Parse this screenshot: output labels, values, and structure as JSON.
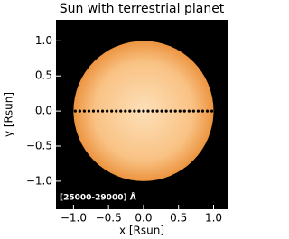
{
  "chart_data": {
    "type": "scatter",
    "title": "Sun with terrestrial planet",
    "xlabel": "x [Rsun]",
    "ylabel": "y [Rsun]",
    "annotation": "[25000-29000] Å",
    "xlim": [
      -1.25,
      1.2
    ],
    "ylim": [
      -1.4,
      1.3
    ],
    "xticks": [
      {
        "value": -1,
        "label": "−1.0"
      },
      {
        "value": -0.5,
        "label": "−0.5"
      },
      {
        "value": 0,
        "label": "0.0"
      },
      0.5,
      {
        "value": 1,
        "label": "1.0"
      }
    ],
    "yticks": [
      {
        "value": -1,
        "label": "−1.0"
      },
      {
        "value": -0.5,
        "label": "−0.5"
      },
      {
        "value": 0,
        "label": "0.0"
      },
      0.5,
      {
        "value": 1,
        "label": "1.0"
      }
    ],
    "background": "#000000",
    "disk": {
      "radius": 1,
      "color": "#f4a452"
    },
    "series": [
      {
        "color": "#000000",
        "x": [
          -0.975,
          -0.91,
          -0.845,
          -0.78,
          -0.715,
          -0.65,
          -0.585,
          -0.52,
          -0.455,
          -0.39,
          -0.325,
          -0.26,
          -0.195,
          -0.13,
          -0.065,
          0,
          0.065,
          0.13,
          0.195,
          0.26,
          0.325,
          0.39,
          0.455,
          0.52,
          0.585,
          0.65,
          0.715,
          0.78,
          0.845,
          0.91,
          0.975
        ],
        "values": [
          0,
          0,
          0,
          0,
          0,
          0,
          0,
          0,
          0,
          0,
          0,
          0,
          0,
          0,
          0,
          0,
          0,
          0,
          0,
          0,
          0,
          0,
          0,
          0,
          0,
          0,
          0,
          0,
          0,
          0,
          0
        ]
      }
    ]
  }
}
